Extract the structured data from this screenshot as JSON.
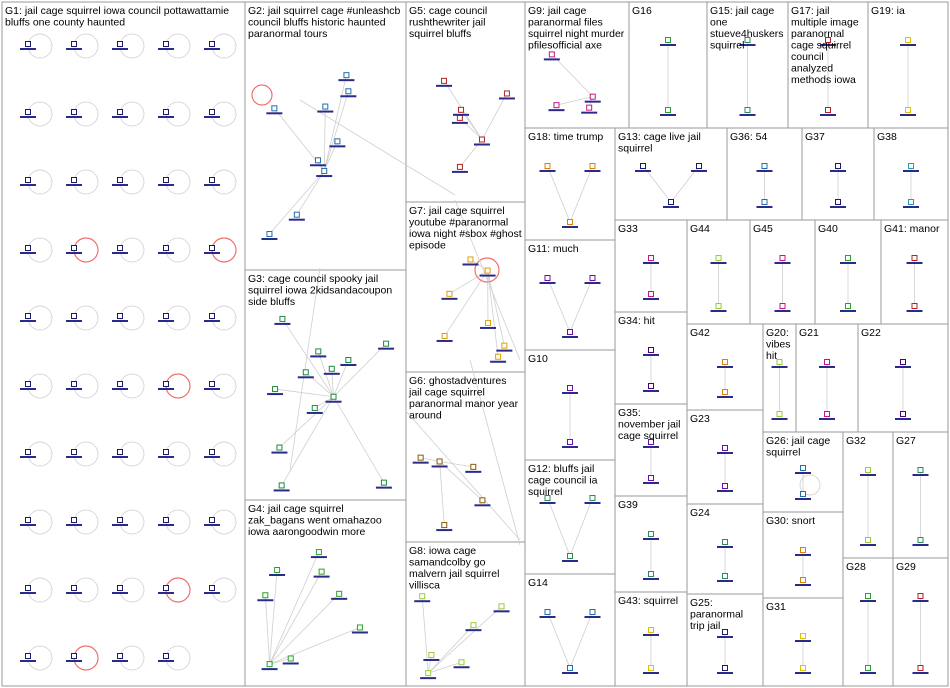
{
  "groups": [
    {
      "id": "G1",
      "label": "G1: jail cage squirrel iowa council pottawattamie bluffs one county haunted",
      "color": "#1a1a6e"
    },
    {
      "id": "G2",
      "label": "G2: jail squirrel cage #unleashcb council bluffs historic haunted paranormal tours",
      "color": "#1f6fb0"
    },
    {
      "id": "G3",
      "label": "G3: cage council spooky jail squirrel iowa 2kidsandacoupon side bluffs",
      "color": "#1e8a3c"
    },
    {
      "id": "G4",
      "label": "G4: jail cage squirrel zak_bagans went omahazoo iowa aarongoodwin more",
      "color": "#2aa02a"
    },
    {
      "id": "G5",
      "label": "G5: cage council rushthewriter jail squirrel bluffs",
      "color": "#b22222"
    },
    {
      "id": "G6",
      "label": "G6: ghostadventures jail cage squirrel paranormal manor year around",
      "color": "#8b5a00"
    },
    {
      "id": "G7",
      "label": "G7: jail cage squirrel youtube #paranormal iowa night #sbox #ghost episode",
      "color": "#e0a000"
    },
    {
      "id": "G8",
      "label": "G8: iowa cage samandcolby go malvern jail squirrel villisca",
      "color": "#9acd32"
    },
    {
      "id": "G9",
      "label": "G9: jail cage paranormal files squirrel night murder pfilesofficial axe",
      "color": "#c71585"
    },
    {
      "id": "G10",
      "label": "G10",
      "color": "#6a0dad"
    },
    {
      "id": "G11",
      "label": "G11: much",
      "color": "#6a0dad"
    },
    {
      "id": "G12",
      "label": "G12: bluffs jail cage council ia squirrel",
      "color": "#2e8b57"
    },
    {
      "id": "G13",
      "label": "G13: cage live jail squirrel",
      "color": "#1a1a6e"
    },
    {
      "id": "G14",
      "label": "G14",
      "color": "#1f6fb0"
    },
    {
      "id": "G15",
      "label": "G15: jail cage one stueve4huskers squirrel",
      "color": "#2e8b57"
    },
    {
      "id": "G16",
      "label": "G16",
      "color": "#2aa02a"
    },
    {
      "id": "G17",
      "label": "G17: jail multiple image paranormal cage squirrel council analyzed methods iowa",
      "color": "#b22222"
    },
    {
      "id": "G18",
      "label": "G18: time trump",
      "color": "#e08000"
    },
    {
      "id": "G19",
      "label": "G19: ia",
      "color": "#e0c000"
    },
    {
      "id": "G20",
      "label": "G20: vibes hit",
      "color": "#9acd32"
    },
    {
      "id": "G21",
      "label": "G21",
      "color": "#c71585"
    },
    {
      "id": "G22",
      "label": "G22",
      "color": "#4b0082"
    },
    {
      "id": "G23",
      "label": "G23",
      "color": "#6a0dad"
    },
    {
      "id": "G24",
      "label": "G24",
      "color": "#2e8b57"
    },
    {
      "id": "G25",
      "label": "G25: paranormal trip jail",
      "color": "#1a1a6e"
    },
    {
      "id": "G26",
      "label": "G26: jail cage squirrel",
      "color": "#1f6fb0"
    },
    {
      "id": "G27",
      "label": "G27",
      "color": "#2e8b57"
    },
    {
      "id": "G28",
      "label": "G28",
      "color": "#2aa02a"
    },
    {
      "id": "G29",
      "label": "G29",
      "color": "#b22222"
    },
    {
      "id": "G30",
      "label": "G30: snort",
      "color": "#e08000"
    },
    {
      "id": "G31",
      "label": "G31",
      "color": "#e0c000"
    },
    {
      "id": "G32",
      "label": "G32",
      "color": "#9acd32"
    },
    {
      "id": "G33",
      "label": "G33",
      "color": "#c71585"
    },
    {
      "id": "G34",
      "label": "G34: hit",
      "color": "#4b0082"
    },
    {
      "id": "G35",
      "label": "G35: november jail cage squirrel",
      "color": "#6a0dad"
    },
    {
      "id": "G36",
      "label": "G36: 54",
      "color": "#1f6fb0"
    },
    {
      "id": "G37",
      "label": "G37",
      "color": "#1a1a6e"
    },
    {
      "id": "G38",
      "label": "G38",
      "color": "#1f9fb0"
    },
    {
      "id": "G39",
      "label": "G39",
      "color": "#2e8b57"
    },
    {
      "id": "G40",
      "label": "G40",
      "color": "#2aa02a"
    },
    {
      "id": "G41",
      "label": "G41: manor",
      "color": "#b22222"
    },
    {
      "id": "G42",
      "label": "G42",
      "color": "#e08000"
    },
    {
      "id": "G43",
      "label": "G43: squirrel",
      "color": "#e0c000"
    },
    {
      "id": "G44",
      "label": "G44",
      "color": "#9acd32"
    },
    {
      "id": "G45",
      "label": "G45",
      "color": "#c71585"
    }
  ],
  "colors": {
    "frame": "#9a9a9a",
    "edge": "#cfcfcf",
    "self_loop": "#f07070",
    "background": "#ffffff"
  }
}
